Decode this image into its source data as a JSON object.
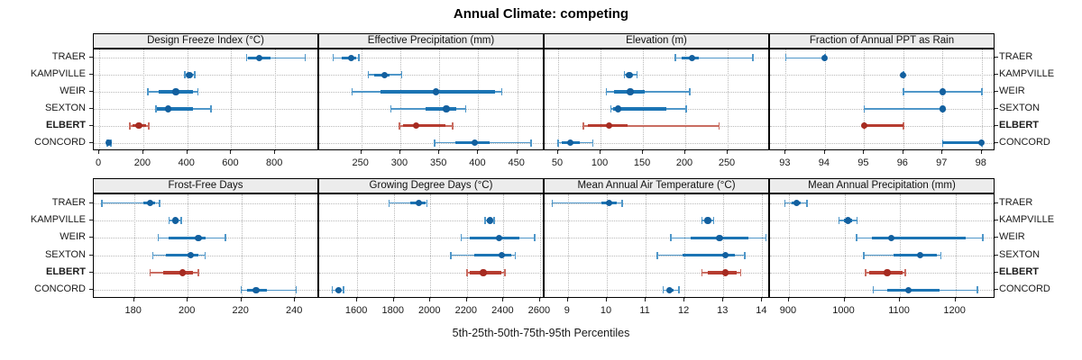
{
  "title": "Annual Climate: competing",
  "caption": "5th-25th-50th-75th-95th Percentiles",
  "sites": [
    "TRAER",
    "KAMPVILLE",
    "WEIR",
    "SEXTON",
    "ELBERT",
    "CONCORD"
  ],
  "highlight_site": "ELBERT",
  "percentile_labels": [
    5,
    25,
    50,
    75,
    95
  ],
  "colors": {
    "blue_dot": "#13609f",
    "blue_mid": "#1b74b4",
    "blue_light": "#4f97c9",
    "red_dot": "#a62b21",
    "red_mid": "#b63c30",
    "red_light": "#c96c61",
    "strip_bg": "#ececec",
    "grid": "#b9b9b9",
    "border": "#000000"
  },
  "chart_data": [
    {
      "type": "interval-dotplot",
      "panel": "Design Freeze Index (°C)",
      "row": 0,
      "col": 0,
      "ticks": [
        0,
        200,
        400,
        600,
        800
      ],
      "xlim": [
        -25,
        1000
      ],
      "values": {
        "TRAER": [
          670,
          678,
          726,
          780,
          937
        ],
        "KAMPVILLE": [
          390,
          400,
          410,
          422,
          434
        ],
        "WEIR": [
          220,
          272,
          348,
          425,
          448
        ],
        "SEXTON": [
          257,
          263,
          312,
          427,
          509
        ],
        "ELBERT": [
          140,
          150,
          180,
          212,
          224
        ],
        "CONCORD": [
          36,
          40,
          44,
          48,
          54
        ]
      }
    },
    {
      "type": "interval-dotplot",
      "panel": "Effective Precipitation (mm)",
      "row": 0,
      "col": 1,
      "ticks": [
        250,
        300,
        350,
        400,
        450
      ],
      "xlim": [
        196,
        485
      ],
      "values": {
        "TRAER": [
          214,
          225,
          237,
          243,
          247
        ],
        "KAMPVILLE": [
          259,
          266,
          280,
          286,
          302
        ],
        "WEIR": [
          238,
          275,
          346,
          421,
          430
        ],
        "SEXTON": [
          288,
          332,
          359,
          372,
          384
        ],
        "ELBERT": [
          299,
          303,
          320,
          358,
          367
        ],
        "CONCORD": [
          344,
          370,
          395,
          414,
          468
        ]
      }
    },
    {
      "type": "interval-dotplot",
      "panel": "Elevation (m)",
      "row": 0,
      "col": 2,
      "ticks": [
        50,
        100,
        150,
        200,
        250
      ],
      "xlim": [
        34,
        300
      ],
      "values": {
        "TRAER": [
          188,
          196,
          208,
          216,
          280
        ],
        "KAMPVILLE": [
          128,
          131,
          134,
          137,
          143
        ],
        "WEIR": [
          107,
          116,
          135,
          152,
          205
        ],
        "SEXTON": [
          112,
          115,
          121,
          178,
          201
        ],
        "ELBERT": [
          80,
          85,
          110,
          132,
          240
        ],
        "CONCORD": [
          50,
          54,
          64,
          75,
          91
        ]
      }
    },
    {
      "type": "interval-dotplot",
      "panel": "Fraction of Annual PPT as Rain",
      "row": 0,
      "col": 3,
      "ticks": [
        93,
        94,
        95,
        96,
        97,
        98
      ],
      "xlim": [
        92.6,
        98.35
      ],
      "values": {
        "TRAER": [
          93,
          94,
          94,
          94,
          94
        ],
        "KAMPVILLE": [
          96,
          96,
          96,
          96,
          96
        ],
        "WEIR": [
          96,
          97,
          97,
          97,
          98
        ],
        "SEXTON": [
          95,
          97,
          97,
          97,
          97
        ],
        "ELBERT": [
          95,
          95,
          95,
          96,
          96
        ],
        "CONCORD": [
          97,
          97,
          98,
          98,
          98
        ]
      }
    },
    {
      "type": "interval-dotplot",
      "panel": "Frost-Free Days",
      "row": 1,
      "col": 0,
      "ticks": [
        180,
        200,
        220,
        240
      ],
      "xlim": [
        165,
        249
      ],
      "values": {
        "TRAER": [
          168,
          183.5,
          186,
          188,
          189.5
        ],
        "KAMPVILLE": [
          193,
          194.5,
          195.5,
          196.5,
          197.5
        ],
        "WEIR": [
          189,
          193,
          204,
          206.5,
          214
        ],
        "SEXTON": [
          187,
          192,
          201,
          204,
          206.5
        ],
        "ELBERT": [
          186,
          191,
          198,
          202,
          204
        ],
        "CONCORD": [
          220,
          222,
          225.5,
          229.5,
          240.5
        ]
      }
    },
    {
      "type": "interval-dotplot",
      "panel": "Growing Degree Days (°C)",
      "row": 1,
      "col": 1,
      "ticks": [
        1600,
        1800,
        2000,
        2200,
        2400,
        2600
      ],
      "xlim": [
        1392,
        2625
      ],
      "values": {
        "TRAER": [
          1775,
          1890,
          1939,
          1972,
          1981
        ],
        "KAMPVILLE": [
          2299,
          2310,
          2325,
          2340,
          2350
        ],
        "WEIR": [
          2168,
          2214,
          2375,
          2487,
          2570
        ],
        "SEXTON": [
          2112,
          2238,
          2391,
          2444,
          2465
        ],
        "ELBERT": [
          2201,
          2215,
          2290,
          2390,
          2408
        ],
        "CONCORD": [
          1464,
          1480,
          1497,
          1512,
          1526
        ]
      }
    },
    {
      "type": "interval-dotplot",
      "panel": "Mean Annual Air Temperature (°C)",
      "row": 1,
      "col": 2,
      "ticks": [
        9,
        10,
        11,
        12,
        13,
        14
      ],
      "xlim": [
        8.4,
        14.2
      ],
      "values": {
        "TRAER": [
          8.6,
          9.85,
          10.05,
          10.25,
          10.4
        ],
        "KAMPVILLE": [
          12.45,
          12.55,
          12.6,
          12.68,
          12.75
        ],
        "WEIR": [
          11.65,
          12.15,
          12.9,
          13.65,
          14.1
        ],
        "SEXTON": [
          11.3,
          11.95,
          13.05,
          13.3,
          13.55
        ],
        "ELBERT": [
          12.45,
          12.6,
          13.05,
          13.35,
          13.45
        ],
        "CONCORD": [
          11.45,
          11.55,
          11.62,
          11.72,
          11.85
        ]
      }
    },
    {
      "type": "interval-dotplot",
      "panel": "Mean Annual Precipitation (mm)",
      "row": 1,
      "col": 3,
      "ticks": [
        900,
        1000,
        1100,
        1200
      ],
      "xlim": [
        866,
        1272
      ],
      "values": {
        "TRAER": [
          893,
          905,
          914,
          921,
          933
        ],
        "KAMPVILLE": [
          990,
          999,
          1006,
          1014,
          1023
        ],
        "WEIR": [
          1022,
          1050,
          1085,
          1218,
          1249
        ],
        "SEXTON": [
          1035,
          1088,
          1136,
          1166,
          1174
        ],
        "ELBERT": [
          1038,
          1045,
          1077,
          1105,
          1110
        ],
        "CONCORD": [
          1052,
          1077,
          1115,
          1172,
          1240
        ]
      }
    }
  ]
}
